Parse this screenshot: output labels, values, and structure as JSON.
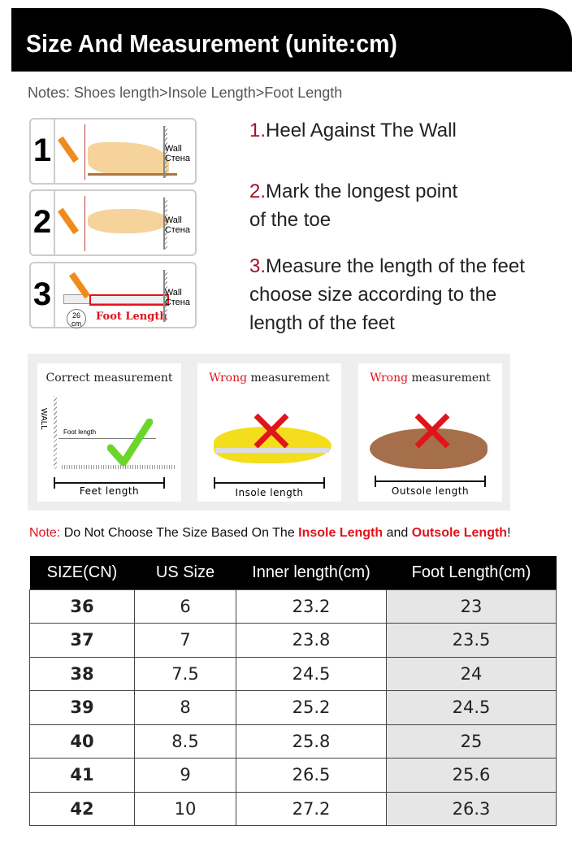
{
  "header": {
    "title": "Size And Measurement (unite:cm)"
  },
  "notes": "Notes: Shoes length>Insole Length>Foot Length",
  "steps": [
    {
      "num": "1",
      "wall": "Wall",
      "wall_ru": "Стена"
    },
    {
      "num": "2",
      "wall": "Wall",
      "wall_ru": "Стена"
    },
    {
      "num": "3",
      "wall": "Wall",
      "wall_ru": "Стена",
      "badge": "26",
      "badge_unit": "cm",
      "ruler_label": "Foot Length"
    }
  ],
  "instructions": [
    {
      "num": "1.",
      "text": "Heel Against The Wall"
    },
    {
      "num": "2.",
      "line1": "Mark the longest point",
      "line2": "of the toe"
    },
    {
      "num": "3.",
      "line1": "Measure the length of the feet",
      "line2": "choose size according to the",
      "line3": "length of the feet"
    }
  ],
  "measurement": [
    {
      "prefix": "Correct",
      "suffix": " measurement",
      "label": "Feet length",
      "wall": "WALL",
      "inner": "Foot length"
    },
    {
      "prefix": "Wrong",
      "suffix": " measurement",
      "label": "Insole length"
    },
    {
      "prefix": "Wrong",
      "suffix": " measurement",
      "label": "Outsole length"
    }
  ],
  "note": {
    "prefix": "Note:",
    "text": " Do Not Choose The Size Based On The ",
    "insole": "Insole Length",
    "and": " and ",
    "outsole": "Outsole Length",
    "end": "!"
  },
  "table": {
    "headers": [
      "SIZE(CN)",
      "US Size",
      "Inner length(cm)",
      "Foot Length(cm)"
    ],
    "rows": [
      [
        "36",
        "6",
        "23.2",
        "23"
      ],
      [
        "37",
        "7",
        "23.8",
        "23.5"
      ],
      [
        "38",
        "7.5",
        "24.5",
        "24"
      ],
      [
        "39",
        "8",
        "25.2",
        "24.5"
      ],
      [
        "40",
        "8.5",
        "25.8",
        "25"
      ],
      [
        "41",
        "9",
        "26.5",
        "25.6"
      ],
      [
        "42",
        "10",
        "27.2",
        "26.3"
      ]
    ]
  },
  "colors": {
    "accent_red": "#e0141b",
    "number_red": "#a0112a"
  }
}
